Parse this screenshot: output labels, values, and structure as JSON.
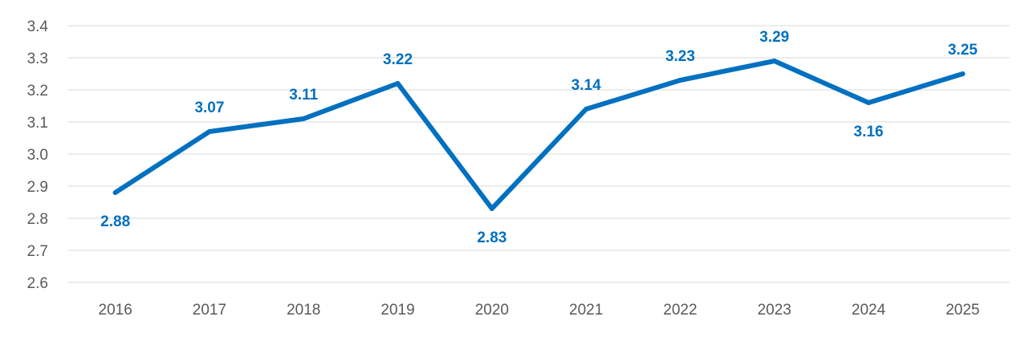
{
  "chart_data": {
    "type": "line",
    "title": "",
    "xlabel": "",
    "ylabel": "",
    "categories": [
      "2016",
      "2017",
      "2018",
      "2019",
      "2020",
      "2021",
      "2022",
      "2023",
      "2024",
      "2025"
    ],
    "series": [
      {
        "values": [
          2.88,
          3.07,
          3.11,
          3.22,
          2.83,
          3.14,
          3.23,
          3.29,
          3.16,
          3.25
        ],
        "labels": [
          "2.88",
          "3.07",
          "3.11",
          "3.22",
          "2.83",
          "3.14",
          "3.23",
          "3.29",
          "3.16",
          "3.25"
        ],
        "label_positions": [
          "below",
          "above",
          "above",
          "above",
          "below",
          "above",
          "above",
          "above",
          "below",
          "above"
        ],
        "color": "#0070c0"
      }
    ],
    "ylim": [
      2.6,
      3.4
    ],
    "yticks": [
      2.6,
      2.7,
      2.8,
      2.9,
      3.0,
      3.1,
      3.2,
      3.3,
      3.4
    ],
    "ytick_labels": [
      "2.6",
      "2.7",
      "2.8",
      "2.9",
      "3.0",
      "3.1",
      "3.2",
      "3.3",
      "3.4"
    ],
    "grid": true,
    "legend": "none",
    "gridline_color": "#d9d9d9",
    "tick_label_color": "#595959"
  }
}
